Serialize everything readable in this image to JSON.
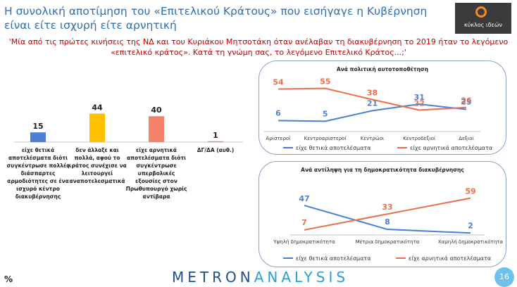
{
  "header": {
    "title": "Η συνολική αποτίμηση του «Επιτελικού Κράτους» που εισήγαγε η Κυβέρνηση είναι είτε ισχυρή είτε αρνητική",
    "logo_text": "κύκλος ιδεών"
  },
  "question": "'Μία από τις πρώτες κινήσεις της ΝΔ και του Κυριάκου Μητσοτάκη όταν ανέλαβαν τη διακυβέρνηση το 2019 ήταν το λεγόμενο «επιτελικό κράτος». Κατά τη γνώμη σας, το λεγόμενο Επιτελικό Κράτος...;'",
  "colors": {
    "blue": "#4a7fd4",
    "yellow": "#ffc000",
    "salmon": "#f4806a",
    "red": "#e8704f",
    "title": "#2f6fb0"
  },
  "chart_data": [
    {
      "type": "bar",
      "categories": [
        [
          "είχε θετικά",
          "αποτελέσματα διότι",
          "συγκέντρωσε πολλές",
          "διάσπαρτες",
          "αρμοδιότητες σε ένα",
          "ισχυρό κέντρο",
          "διακυβέρνησης"
        ],
        [
          "δεν άλλαξε και",
          "πολλά, αφού το",
          "κράτος συνέχισε να",
          "λειτουργεί",
          "αναποτελεσματικά"
        ],
        [
          "είχε αρνητικά",
          "αποτελέσματα διότι",
          "συγκέντρωσε",
          "υπερβολικές",
          "εξουσίες στον",
          "Πρωθυπουργό χωρίς",
          "αντίβαρα"
        ],
        [
          "ΔΓ/ΔΑ (αυθ.)"
        ]
      ],
      "values": [
        15,
        44,
        40,
        1
      ],
      "bar_colors": [
        "#4a7fd4",
        "#ffc000",
        "#f4806a",
        "#f4806a"
      ],
      "ylim": [
        0,
        50
      ]
    },
    {
      "type": "line",
      "title": "Ανά πολιτική αυτοτοποθέτηση",
      "categories": [
        "Αριστεροί",
        "Κεντροαριστεροί",
        "Κεντρώοι",
        "Κεντροδεξιοί",
        "Δεξιοί"
      ],
      "series": [
        {
          "name": "είχε θετικά αποτελέσματα",
          "values": [
            6,
            5,
            21,
            31,
            23
          ],
          "color": "#4a7fd4"
        },
        {
          "name": "είχε αρνητικά αποτελέσματα",
          "values": [
            54,
            55,
            38,
            22,
            26
          ],
          "color": "#e8704f"
        }
      ],
      "ylim": [
        0,
        60
      ]
    },
    {
      "type": "line",
      "title": "Ανά αντίληψη για τη δημοκρατικότητα διακυβέρνησης",
      "categories": [
        "Υψηλή δημοκρατικότητα",
        "Μέτρια δημοκρατικότητα",
        "Χαμηλή δημοκρατικότητα"
      ],
      "series": [
        {
          "name": "είχε θετικά αποτελέσματα",
          "values": [
            47,
            8,
            2
          ],
          "color": "#4a7fd4"
        },
        {
          "name": "είχε αρνητικά αποτελέσματα",
          "values": [
            7,
            33,
            59
          ],
          "color": "#e8704f"
        }
      ],
      "ylim": [
        0,
        70
      ]
    }
  ],
  "footer": {
    "brand_a": "METRON",
    "brand_b": "ANALYSIS",
    "percent": "%",
    "page": "16"
  }
}
